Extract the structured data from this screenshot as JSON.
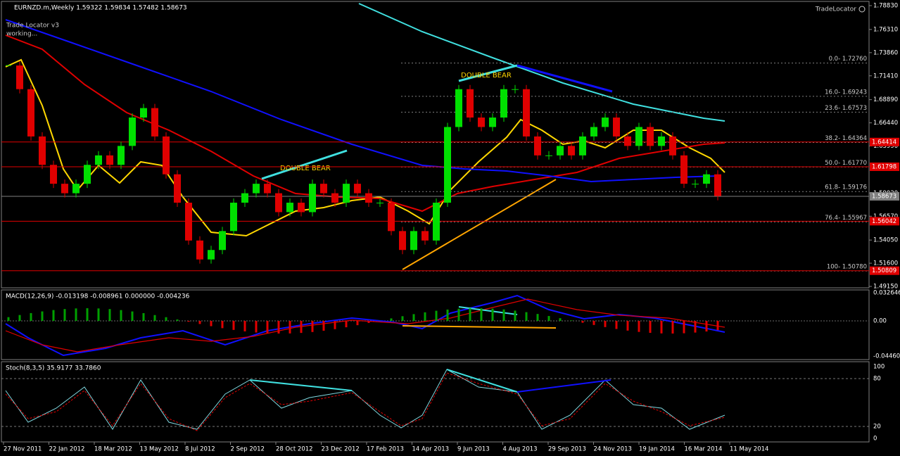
{
  "header": {
    "symbol": "EURNZD.m,Weekly  1.59322 1.59834 1.57482 1.58673",
    "brand": "TradeLocator",
    "indicator": "Trade Locator v3",
    "status": "working..."
  },
  "annotations": [
    "DOUBLE BEAR",
    "DOUBLE BEAR"
  ],
  "price_axis": {
    "ylim": [
      1.4915,
      1.7883
    ],
    "ticks": [
      {
        "value": 1.7883,
        "label": "1.78830"
      },
      {
        "value": 1.7631,
        "label": "1.76310"
      },
      {
        "value": 1.7386,
        "label": "1.73860"
      },
      {
        "value": 1.7141,
        "label": "1.71410"
      },
      {
        "value": 1.6889,
        "label": "1.68890"
      },
      {
        "value": 1.6644,
        "label": "1.66440"
      },
      {
        "value": 1.6399,
        "label": "1.63990"
      },
      {
        "value": 1.5902,
        "label": "1.59020"
      },
      {
        "value": 1.5657,
        "label": "1.56570"
      },
      {
        "value": 1.5405,
        "label": "1.54050"
      },
      {
        "value": 1.516,
        "label": "1.51600"
      },
      {
        "value": 1.4915,
        "label": "1.49150"
      }
    ],
    "levels": [
      {
        "value": 1.64414,
        "label": "1.64414",
        "color": "#e00000"
      },
      {
        "value": 1.61798,
        "label": "1.61798",
        "color": "#e00000"
      },
      {
        "value": 1.58673,
        "label": "1.58673",
        "color": "#808080"
      },
      {
        "value": 1.56042,
        "label": "1.56042",
        "color": "#e00000"
      },
      {
        "value": 1.50809,
        "label": "1.50809",
        "color": "#e00000"
      }
    ]
  },
  "fib": [
    {
      "value": 1.7276,
      "label": "0.0- 1.72760"
    },
    {
      "value": 1.69243,
      "label": "16.0- 1.69243"
    },
    {
      "value": 1.67573,
      "label": "23.6- 1.67573"
    },
    {
      "value": 1.64364,
      "label": "38.2- 1.64364"
    },
    {
      "value": 1.6177,
      "label": "50.0- 1.61770"
    },
    {
      "value": 1.59176,
      "label": "61.8- 1.59176"
    },
    {
      "value": 1.55967,
      "label": "76.4- 1.55967"
    },
    {
      "value": 1.5078,
      "label": "100- 1.50780"
    }
  ],
  "closes": [
    1.725,
    1.7,
    1.65,
    1.62,
    1.6,
    1.59,
    1.6,
    1.62,
    1.63,
    1.62,
    1.64,
    1.67,
    1.68,
    1.65,
    1.61,
    1.58,
    1.54,
    1.52,
    1.53,
    1.55,
    1.58,
    1.59,
    1.6,
    1.59,
    1.57,
    1.58,
    1.57,
    1.6,
    1.59,
    1.58,
    1.6,
    1.59,
    1.58,
    1.58,
    1.55,
    1.53,
    1.55,
    1.54,
    1.58,
    1.66,
    1.7,
    1.67,
    1.66,
    1.67,
    1.7,
    1.7,
    1.65,
    1.63,
    1.63,
    1.64,
    1.63,
    1.65,
    1.66,
    1.67,
    1.65,
    1.64,
    1.66,
    1.64,
    1.65,
    1.63,
    1.6,
    1.6,
    1.61,
    1.587
  ],
  "macd": {
    "label": "MACD(12,26,9) -0.013198 -0.008961 0.000000 -0.004236",
    "ticks": [
      "0.032646",
      "0.00",
      "-0.044602"
    ]
  },
  "stoch": {
    "label": "Stoch(8,3,5) 35.9177 33.7860",
    "ticks": [
      "100",
      "80",
      "20",
      "0"
    ]
  },
  "dates": [
    "27 Nov 2011",
    "22 Jan 2012",
    "18 Mar 2012",
    "13 May 2012",
    "8 Jul 2012",
    "2 Sep 2012",
    "28 Oct 2012",
    "23 Dec 2012",
    "17 Feb 2013",
    "14 Apr 2013",
    "9 Jun 2013",
    "4 Aug 2013",
    "29 Sep 2013",
    "24 Nov 2013",
    "19 Jan 2014",
    "16 Mar 2014",
    "11 May 2014"
  ]
}
